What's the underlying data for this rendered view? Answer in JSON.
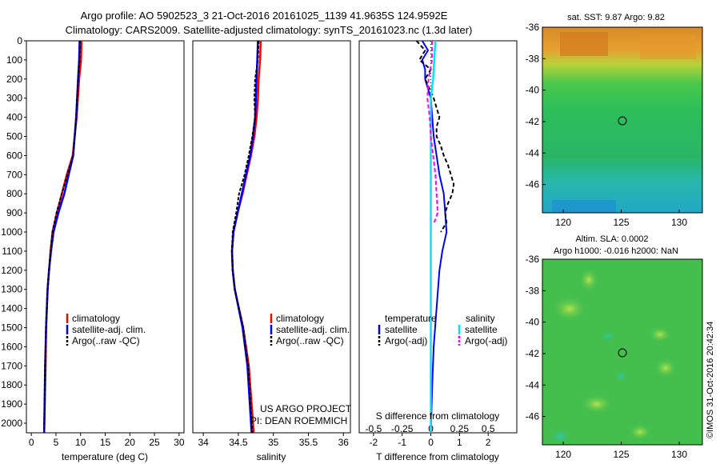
{
  "header": {
    "line1": "Argo profile: AO 5902523_3 21-Oct-2016 20161025_1139 41.9635S 124.9592E",
    "line2": "Climatology: CARS2009. Satellite-adjusted climatology: synTS_20161023.nc (1.3d later)"
  },
  "colors": {
    "climatology": "#ff0000",
    "satellite": "#0000ff",
    "argo": "#000000",
    "salinity_satellite": "#00e5ff",
    "salinity_argo": "#ff00ff"
  },
  "panels": {
    "temperature": {
      "xlabel": "temperature (deg C)",
      "xticks": [
        "0",
        "5",
        "10",
        "15",
        "20",
        "25",
        "30"
      ],
      "legend": [
        "climatology",
        "satellite-adj. clim.",
        "Argo(..raw -QC)"
      ]
    },
    "salinity": {
      "xlabel": "salinity",
      "xticks": [
        "34",
        "34.5",
        "35",
        "35.5",
        "36"
      ],
      "legend": [
        "climatology",
        "satellite-adj. clim.",
        "Argo(..raw -QC)"
      ],
      "credit1": "US ARGO PROJECT",
      "credit2": "PI: DEAN ROEMMICH"
    },
    "difference": {
      "xlabel": "T difference from climatology",
      "xlabel_top": "S difference from climatology",
      "xticks": [
        "-2",
        "-1",
        "0",
        "1",
        "2"
      ],
      "xticks_top": [
        "-0.5",
        "-0.25",
        "0",
        "0.25",
        "0.5"
      ],
      "legend_t_title": "temperature",
      "legend_s_title": "salinity",
      "legend_t": [
        "satellite",
        "Argo(-adj)"
      ],
      "legend_s": [
        "satellite",
        "Argo(-adj)"
      ]
    },
    "depth_ticks": [
      "0",
      "100",
      "200",
      "300",
      "400",
      "500",
      "600",
      "700",
      "800",
      "900",
      "1000",
      "1100",
      "1200",
      "1300",
      "1400",
      "1500",
      "1600",
      "1700",
      "1800",
      "1900",
      "2000"
    ]
  },
  "maps": {
    "sst_title": "sat. SST: 9.87 Argo: 9.82",
    "sla_title1": "Altim. SLA: 0.0002",
    "sla_title2": "Argo h1000: -0.016 h2000: NaN",
    "yticks": [
      "-36",
      "-38",
      "-40",
      "-42",
      "-44",
      "-46"
    ],
    "xticks": [
      "120",
      "125",
      "130"
    ],
    "stamp": "©IMOS 31-Oct-2016 20:42:34"
  },
  "chart_data": [
    {
      "type": "line",
      "xlabel": "temperature (deg C)",
      "xlim": [
        -1,
        31
      ],
      "ylim": [
        2050,
        0
      ],
      "series": [
        {
          "name": "climatology",
          "depth": [
            0,
            100,
            200,
            400,
            600,
            700,
            800,
            900,
            1000,
            1100,
            1200,
            1300,
            1500,
            1700,
            2050
          ],
          "values": [
            10.2,
            10.1,
            9.7,
            9.2,
            8.4,
            7.2,
            6.2,
            5.2,
            4.3,
            3.9,
            3.6,
            3.3,
            3.0,
            2.9,
            2.6
          ]
        },
        {
          "name": "satellite-adj. clim.",
          "depth": [
            0,
            100,
            200,
            400,
            600,
            700,
            800,
            900,
            1000,
            1100,
            1200,
            1300,
            1500,
            1700,
            2050
          ],
          "values": [
            9.8,
            9.7,
            9.5,
            9.1,
            8.5,
            7.6,
            6.7,
            5.5,
            4.5,
            4.0,
            3.6,
            3.3,
            3.0,
            2.8,
            2.6
          ]
        },
        {
          "name": "Argo(..raw -QC)",
          "depth": [
            0,
            100,
            200,
            400,
            600,
            700,
            800,
            900,
            1000,
            1100,
            1200,
            1300,
            1500,
            1700,
            2050
          ],
          "values": [
            9.9,
            9.8,
            9.5,
            9.1,
            8.5,
            7.3,
            6.2,
            5.1,
            4.3,
            3.9,
            3.6,
            3.3,
            3.0,
            2.8,
            2.6
          ]
        }
      ]
    },
    {
      "type": "line",
      "xlabel": "salinity",
      "xlim": [
        33.85,
        36.1
      ],
      "ylim": [
        2050,
        0
      ],
      "series": [
        {
          "name": "climatology",
          "depth": [
            0,
            100,
            200,
            300,
            400,
            500,
            600,
            700,
            800,
            900,
            1000,
            1100,
            1200,
            1300,
            1500,
            1700,
            2050
          ],
          "values": [
            34.82,
            34.81,
            34.79,
            34.78,
            34.76,
            34.73,
            34.68,
            34.62,
            34.56,
            34.49,
            34.43,
            34.41,
            34.42,
            34.45,
            34.57,
            34.65,
            34.72
          ]
        },
        {
          "name": "satellite-adj. clim.",
          "depth": [
            0,
            100,
            200,
            300,
            400,
            500,
            600,
            700,
            800,
            900,
            1000,
            1100,
            1200,
            1300,
            1500,
            1700,
            2050
          ],
          "values": [
            34.78,
            34.77,
            34.76,
            34.75,
            34.74,
            34.71,
            34.67,
            34.61,
            34.55,
            34.49,
            34.43,
            34.41,
            34.42,
            34.45,
            34.56,
            34.63,
            34.69
          ]
        },
        {
          "name": "Argo(..raw -QC)",
          "depth": [
            0,
            100,
            200,
            300,
            400,
            500,
            600,
            700,
            800,
            900,
            1000,
            1100,
            1200,
            1300,
            1500,
            1700,
            2050
          ],
          "values": [
            34.79,
            34.78,
            34.74,
            34.73,
            34.74,
            34.7,
            34.65,
            34.59,
            34.51,
            34.47,
            34.42,
            34.41,
            34.42,
            34.45,
            34.57,
            34.64,
            34.7
          ]
        }
      ]
    },
    {
      "type": "line",
      "xlabel": "T difference from climatology",
      "xlim": [
        -2.5,
        3.0
      ],
      "ylim": [
        2050,
        0
      ],
      "series": [
        {
          "name": "temperature satellite",
          "depth": [
            0,
            50,
            100,
            150,
            200,
            300,
            400,
            500,
            600,
            700,
            800,
            900,
            1000,
            1100,
            1200,
            1400,
            1600,
            1800,
            2050
          ],
          "values": [
            -0.3,
            -0.1,
            -0.3,
            -0.2,
            -0.2,
            0.0,
            0.05,
            0.1,
            0.2,
            0.3,
            0.45,
            0.5,
            0.55,
            0.4,
            0.3,
            0.2,
            0.1,
            0.05,
            0.0
          ]
        },
        {
          "name": "temperature Argo(-adj)",
          "depth": [
            0,
            50,
            100,
            150,
            200,
            300,
            350,
            400,
            450,
            500,
            550,
            600,
            650,
            700,
            750,
            800,
            850,
            900,
            950,
            1000
          ],
          "values": [
            -0.5,
            -0.2,
            -0.4,
            0.0,
            -0.2,
            0.1,
            0.2,
            0.3,
            0.2,
            0.2,
            0.35,
            0.45,
            0.6,
            0.7,
            0.8,
            0.75,
            0.6,
            0.5,
            0.55,
            0.35
          ]
        },
        {
          "name": "salinity satellite",
          "depth": [
            0,
            100,
            200,
            300,
            400,
            500,
            600,
            700,
            800,
            900,
            1000,
            1200,
            1400,
            1600,
            1800,
            2050
          ],
          "values": [
            0.04,
            0.03,
            0.02,
            0.0,
            0.0,
            0.0,
            0.0,
            0.0,
            0.0,
            0.0,
            0.0,
            0.0,
            0.0,
            0.0,
            0.0,
            0.0
          ]
        },
        {
          "name": "salinity Argo(-adj)",
          "depth": [
            0,
            100,
            200,
            300,
            400,
            500,
            600,
            700,
            800,
            900,
            950
          ],
          "values": [
            0.01,
            0.01,
            -0.02,
            -0.03,
            -0.01,
            0.0,
            0.02,
            0.04,
            0.05,
            0.06,
            0.03
          ]
        }
      ]
    }
  ]
}
